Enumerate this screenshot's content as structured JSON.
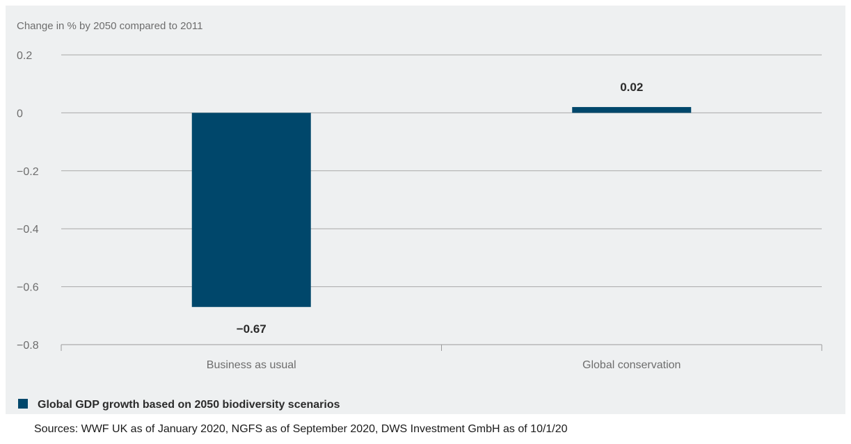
{
  "chart_data": {
    "type": "bar",
    "ylabel": "Change in % by 2050 compared to 2011",
    "categories": [
      "Business as usual",
      "Global conservation"
    ],
    "series": [
      {
        "name": "Global GDP growth based on 2050 biodiversity scenarios",
        "values": [
          -0.67,
          0.02
        ],
        "data_labels": [
          "−0.67",
          "0.02"
        ],
        "color": "#00476b"
      }
    ],
    "ylim": [
      -0.8,
      0.2
    ],
    "yticks": [
      0.2,
      0,
      -0.2,
      -0.4,
      -0.6,
      -0.8
    ],
    "ytick_labels": [
      "0.2",
      "0",
      "−0.2",
      "−0.4",
      "−0.6",
      "−0.8"
    ],
    "grid": true,
    "legend_position": "bottom-left"
  },
  "source": "Sources: WWF UK as of January 2020, NGFS as of September 2020, DWS Investment GmbH as of 10/1/20"
}
